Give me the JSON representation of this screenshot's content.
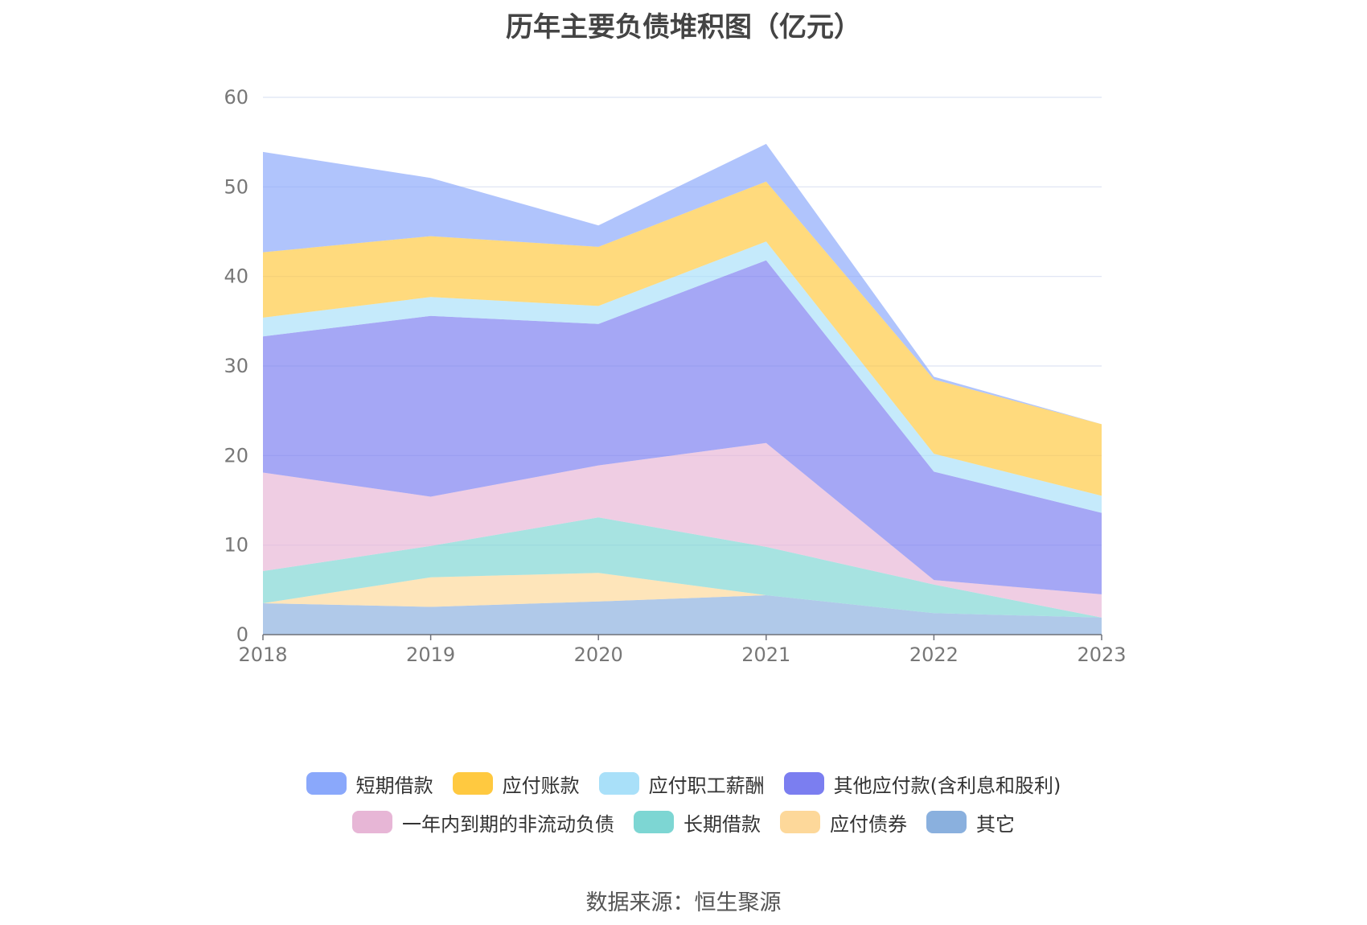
{
  "source_text": "数据来源：恒生聚源",
  "colors": {
    "短期借款": "#8aa8fb",
    "应付账款": "#ffc940",
    "应付职工薪酬": "#a9e0f9",
    "其他应付款(含利息和股利)": "#7b7ef0",
    "一年内到期的非流动负债": "#e7b6d6",
    "长期借款": "#7dd6d3",
    "应付债券": "#fdd89a",
    "其它": "#8ab0de"
  },
  "chart_data": {
    "type": "area",
    "stacked": true,
    "title": "历年主要负债堆积图（亿元）",
    "categories": [
      "2018",
      "2019",
      "2020",
      "2021",
      "2022",
      "2023"
    ],
    "ylim": [
      0,
      60
    ],
    "yticks": [
      0,
      10,
      20,
      30,
      40,
      50,
      60
    ],
    "grid": true,
    "legend_position": "bottom",
    "series": [
      {
        "name": "其它",
        "values": [
          3.5,
          3.1,
          3.7,
          4.4,
          2.4,
          1.9
        ]
      },
      {
        "name": "应付债券",
        "values": [
          0.0,
          3.3,
          3.2,
          0.0,
          0.0,
          0.0
        ]
      },
      {
        "name": "长期借款",
        "values": [
          3.6,
          3.5,
          6.2,
          5.4,
          3.2,
          0.0
        ]
      },
      {
        "name": "一年内到期的非流动负债",
        "values": [
          11.0,
          5.5,
          5.8,
          11.6,
          0.5,
          2.6
        ]
      },
      {
        "name": "其他应付款(含利息和股利)",
        "values": [
          15.2,
          20.2,
          15.8,
          20.4,
          12.1,
          9.1
        ]
      },
      {
        "name": "应付职工薪酬",
        "values": [
          2.1,
          2.1,
          2.0,
          2.1,
          2.0,
          1.9
        ]
      },
      {
        "name": "应付账款",
        "values": [
          7.3,
          6.8,
          6.6,
          6.7,
          8.3,
          8.0
        ]
      },
      {
        "name": "短期借款",
        "values": [
          11.2,
          6.5,
          2.4,
          4.2,
          0.3,
          0.0
        ]
      }
    ]
  },
  "legend_rows": [
    [
      "短期借款",
      "应付账款",
      "应付职工薪酬",
      "其他应付款(含利息和股利)"
    ],
    [
      "一年内到期的非流动负债",
      "长期借款",
      "应付债券",
      "其它"
    ]
  ]
}
